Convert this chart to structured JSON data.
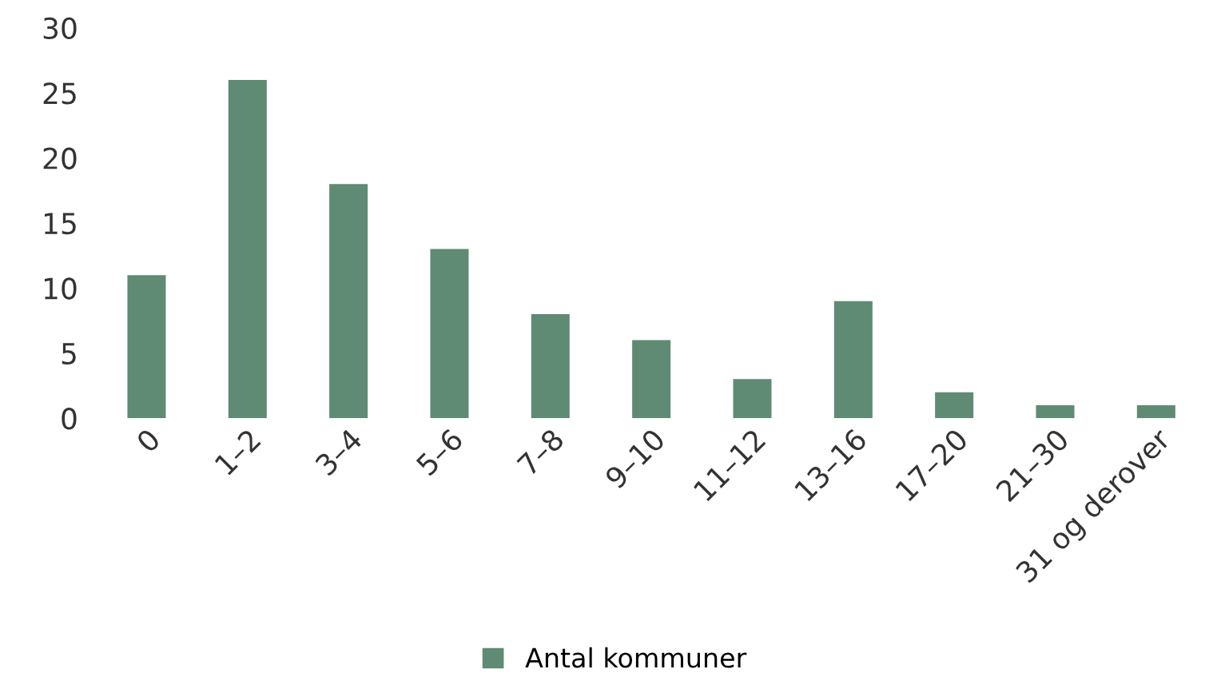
{
  "chart_data": {
    "type": "bar",
    "categories": [
      "0",
      "1–2",
      "3–4",
      "5–6",
      "7–8",
      "9–10",
      "11–12",
      "13–16",
      "17–20",
      "21–30",
      "31 og derover"
    ],
    "series": [
      {
        "name": "Antal kommuner",
        "color": "#5f8a74",
        "values": [
          11,
          26,
          18,
          13,
          8,
          6,
          3,
          9,
          2,
          1,
          1
        ]
      }
    ],
    "ylim": [
      0,
      30
    ],
    "yticks": [
      0,
      5,
      10,
      15,
      20,
      25,
      30
    ],
    "grid": false,
    "legend": "bottom"
  }
}
